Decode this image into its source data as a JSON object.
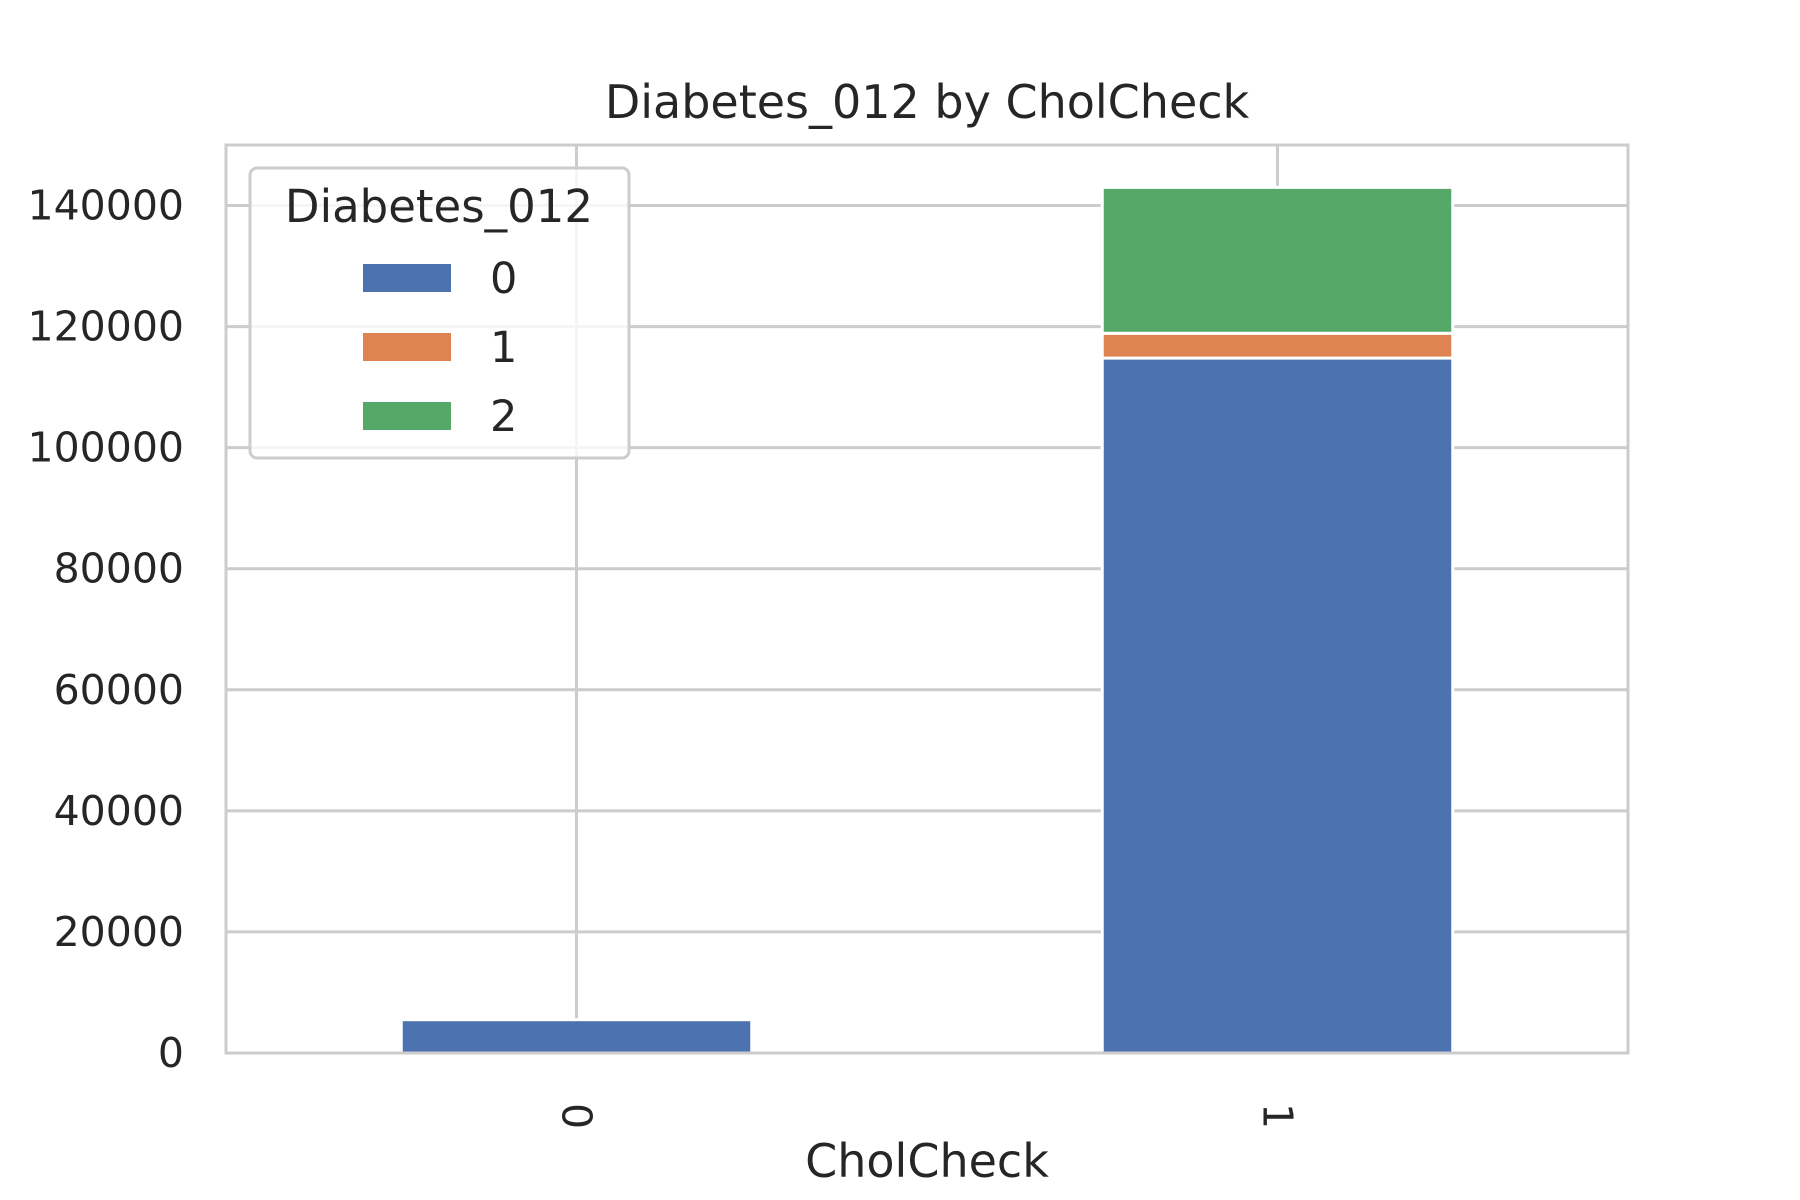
{
  "chart_data": {
    "type": "bar",
    "stacked": true,
    "title": "Diabetes_012 by CholCheck",
    "xlabel": "CholCheck",
    "ylabel": "",
    "categories": [
      "0",
      "1"
    ],
    "series": [
      {
        "name": "0",
        "values": [
          5500,
          114800
        ],
        "color": "#4c72b0"
      },
      {
        "name": "1",
        "values": [
          0,
          4100
        ],
        "color": "#dd8452"
      },
      {
        "name": "2",
        "values": [
          0,
          24100
        ],
        "color": "#55a868"
      }
    ],
    "ylim": [
      0,
      150000
    ],
    "yticks": [
      0,
      20000,
      40000,
      60000,
      80000,
      100000,
      120000,
      140000
    ],
    "ytick_labels": [
      "0",
      "20000",
      "40000",
      "60000",
      "80000",
      "100000",
      "120000",
      "140000"
    ],
    "grid": true,
    "legend": {
      "title": "Diabetes_012",
      "placement": "top-left"
    }
  }
}
